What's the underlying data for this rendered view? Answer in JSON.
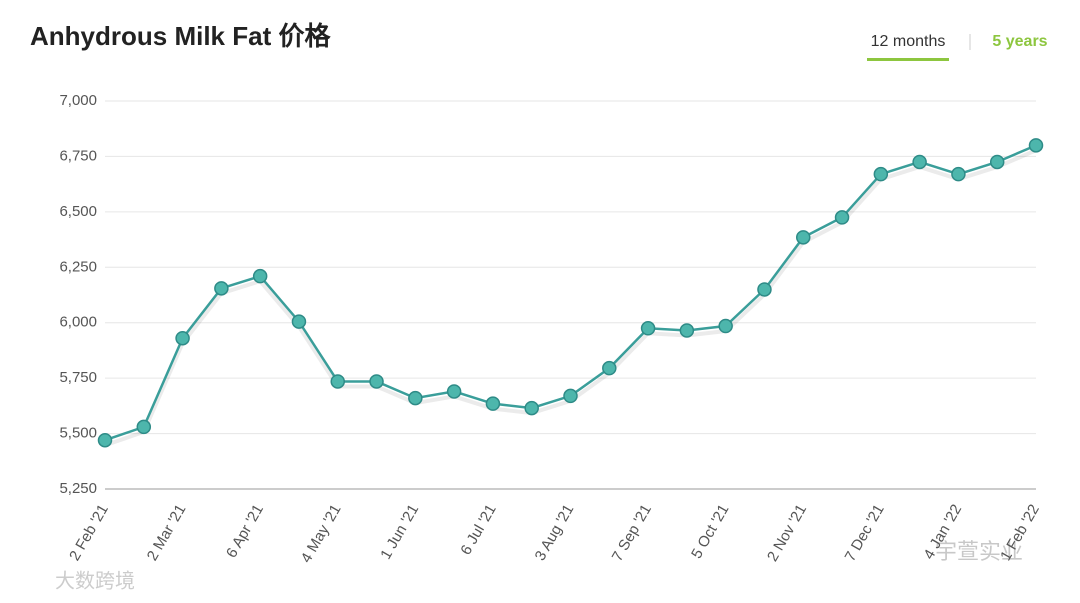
{
  "chart_data": {
    "type": "line",
    "title": "Anhydrous Milk Fat 价格",
    "tabs": [
      "12 months",
      "5 years"
    ],
    "watermarks": [
      "大数跨境",
      "宇萱实业"
    ],
    "categories": [
      "2 Feb '21",
      null,
      "2 Mar '21",
      null,
      "6 Apr '21",
      null,
      "4 May '21",
      null,
      "1 Jun '21",
      null,
      "6 Jul '21",
      null,
      "3 Aug '21",
      null,
      "7 Sep '21",
      null,
      "5 Oct '21",
      null,
      "2 Nov '21",
      null,
      "7 Dec '21",
      null,
      "4 Jan '22",
      null,
      "1 Feb '22"
    ],
    "series": [
      {
        "color": "#3a9e9a",
        "values": [
          5470,
          5530,
          5930,
          6155,
          6210,
          6005,
          5735,
          5735,
          5660,
          5690,
          5635,
          5615,
          5670,
          5795,
          5975,
          5965,
          5985,
          6150,
          6385,
          6475,
          6670,
          6725,
          6670,
          6725,
          6800
        ]
      }
    ],
    "ylim": [
      5250,
      7000
    ],
    "yticks": [
      {
        "value": 5250,
        "label": "5,250"
      },
      {
        "value": 5500,
        "label": "5,500"
      },
      {
        "value": 5750,
        "label": "5,750"
      },
      {
        "value": 6000,
        "label": "6,000"
      },
      {
        "value": 6250,
        "label": "6,250"
      },
      {
        "value": 6500,
        "label": "6,500"
      },
      {
        "value": 6750,
        "label": "6,750"
      },
      {
        "value": 7000,
        "label": "7,000"
      }
    ],
    "grid": true
  }
}
